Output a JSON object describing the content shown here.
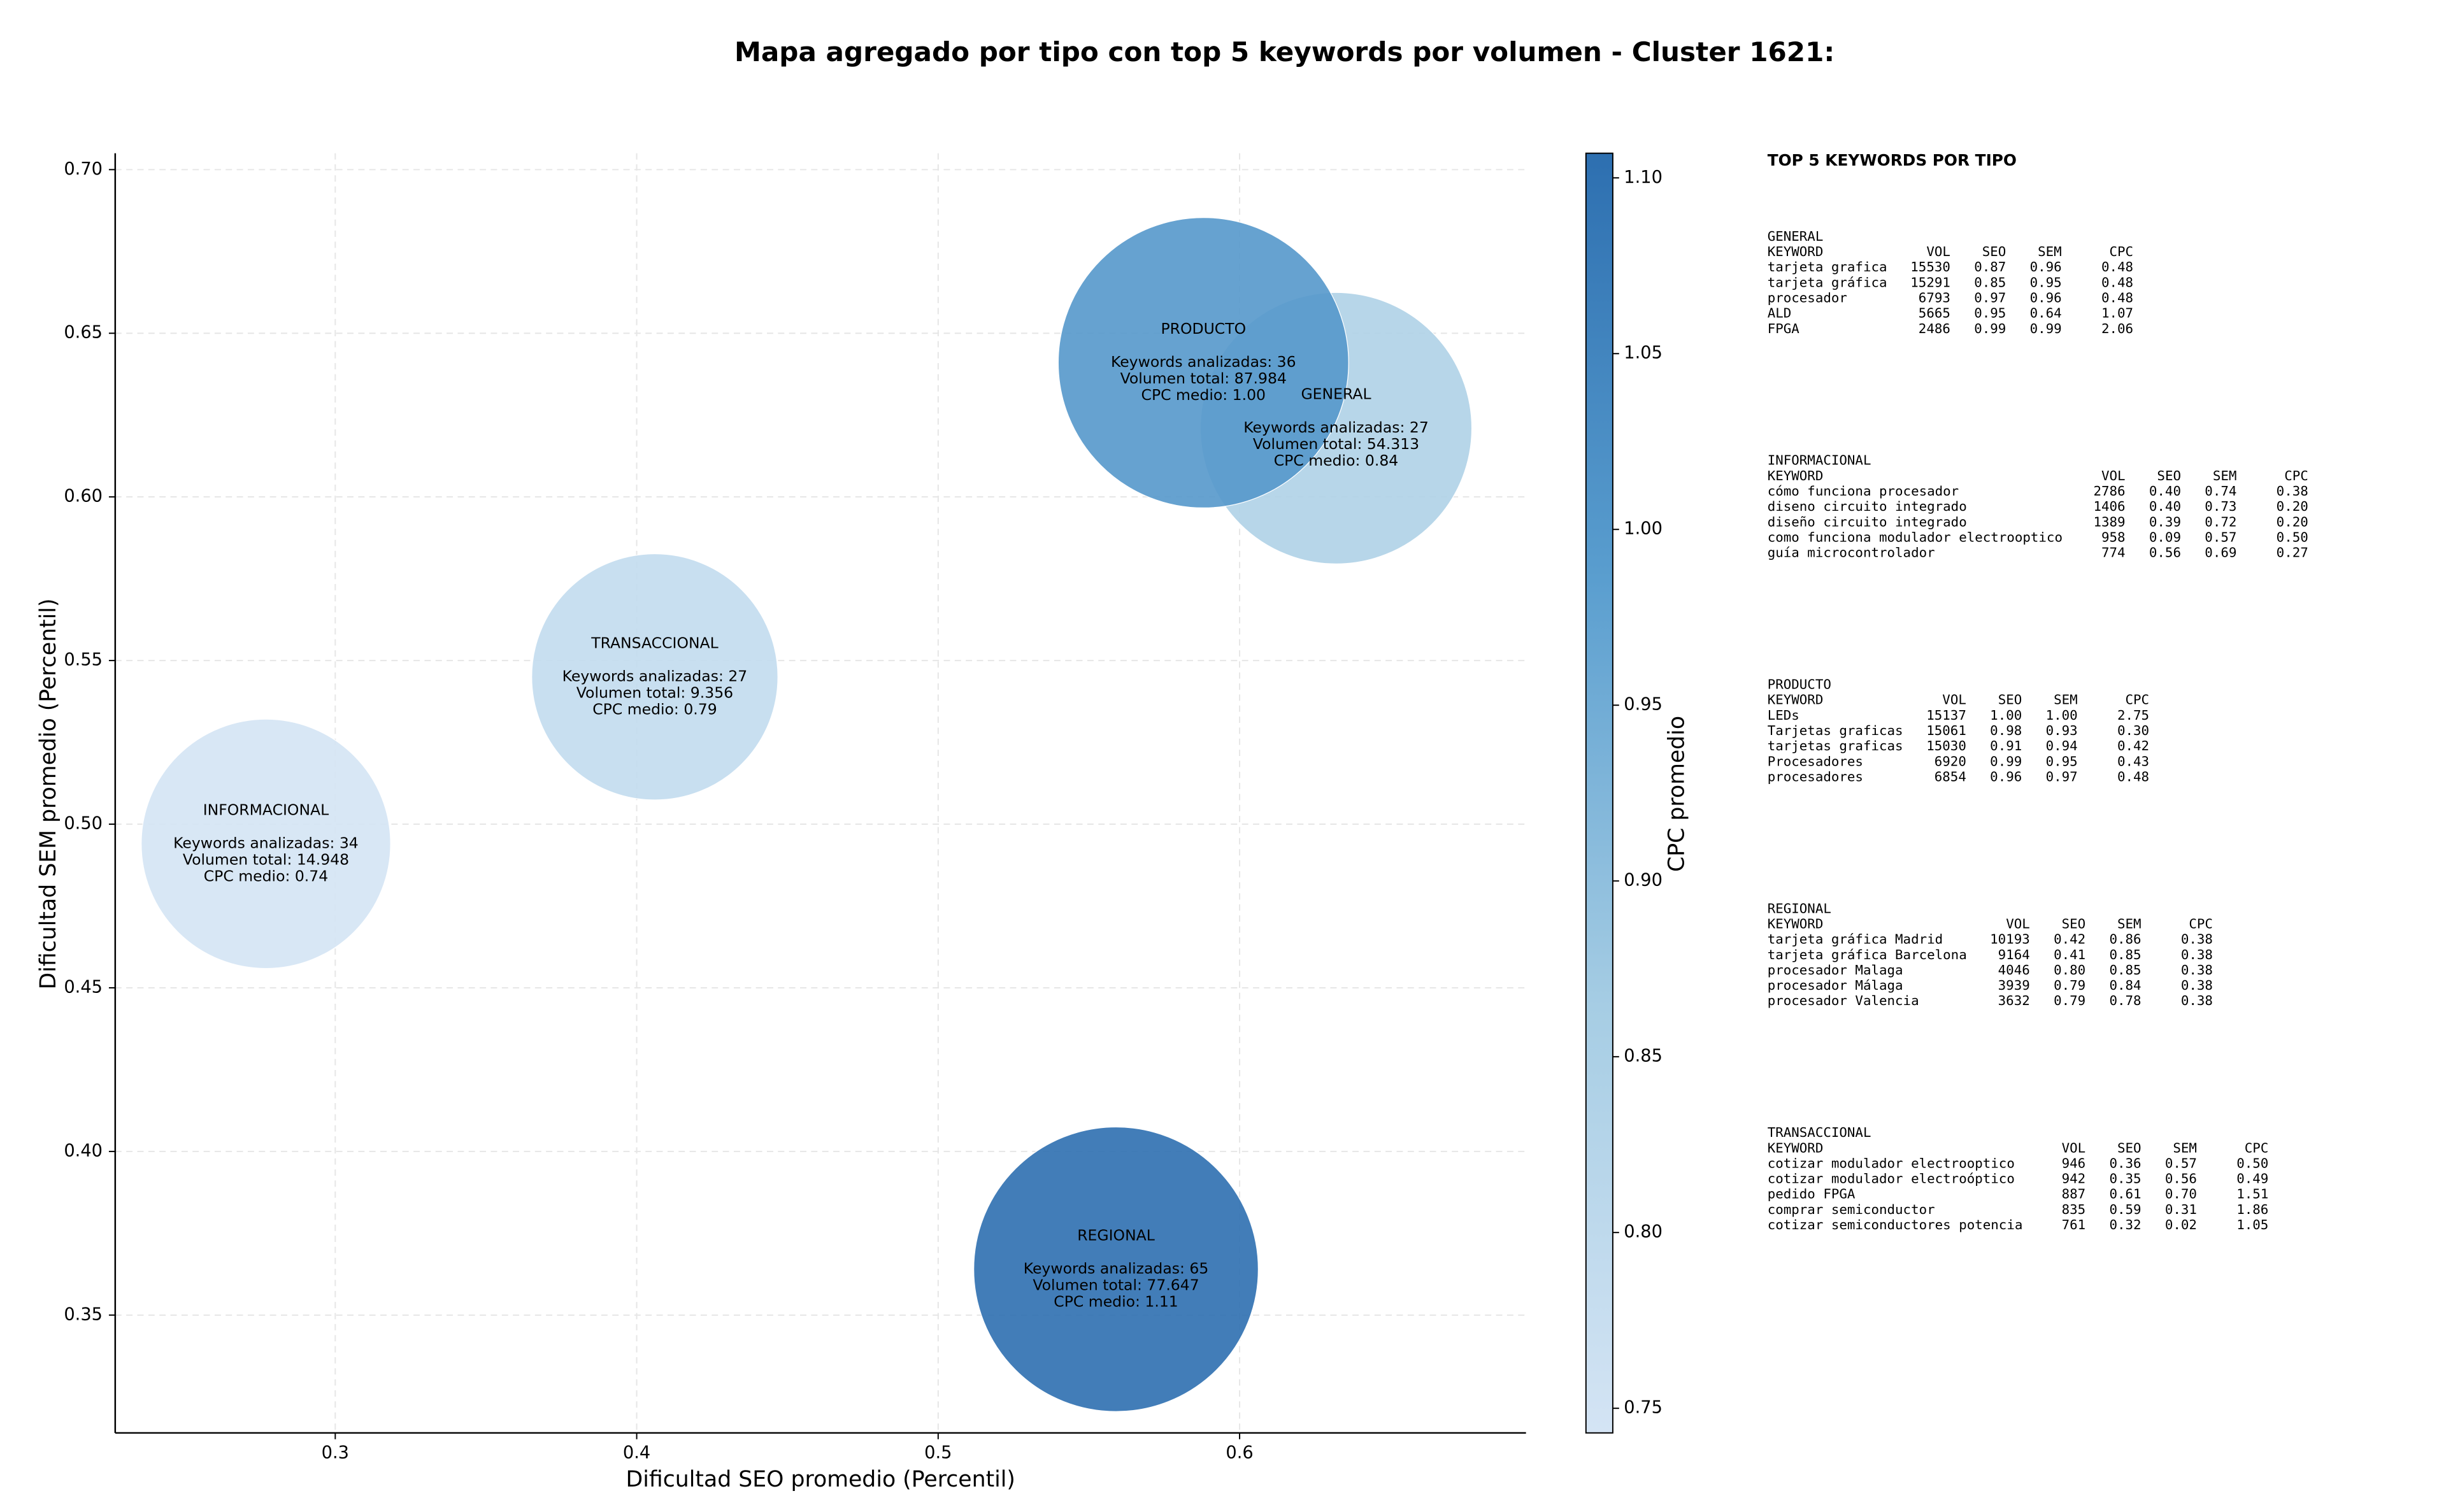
{
  "chart_data": {
    "type": "bubble",
    "title": "Mapa agregado por tipo con top 5 keywords por volumen - Cluster 1621:",
    "x_label": "Dificultad SEO promedio (Percentil)",
    "y_label": "Dificultad SEM promedio (Percentil)",
    "colorbar_label": "CPC promedio",
    "xlim": [
      0.227,
      0.695
    ],
    "xticks": [
      0.3,
      0.4,
      0.5,
      0.6
    ],
    "ylim": [
      0.314,
      0.705
    ],
    "yticks": [
      0.35,
      {
        "value": 0.4,
        "label": "0.40"
      },
      0.45,
      {
        "value": 0.5,
        "label": "0.50"
      },
      0.55,
      {
        "value": 0.6,
        "label": "0.60"
      },
      0.65,
      {
        "value": 0.7,
        "label": "0.70"
      }
    ],
    "clim": [
      0.743,
      1.107
    ],
    "cticks": [
      0.75,
      {
        "value": 0.8,
        "label": "0.80"
      },
      0.85,
      {
        "value": 0.9,
        "label": "0.90"
      },
      0.95,
      {
        "value": 1.0,
        "label": "1.00"
      },
      1.05,
      {
        "value": 1.1,
        "label": "1.10"
      }
    ],
    "cmap": [
      "#d4e4f4",
      "#a6cde4",
      "#5a9ecf",
      "#2d6fb0"
    ],
    "grid": true,
    "points": [
      {
        "x": 0.632,
        "y": 0.621,
        "volume": 54313,
        "cpc": 0.84,
        "lines": [
          "GENERAL",
          "Keywords analizadas: 27",
          "Volumen total: 54.313",
          "CPC medio: 0.84"
        ]
      },
      {
        "x": 0.588,
        "y": 0.641,
        "volume": 87984,
        "cpc": 1.0,
        "lines": [
          "PRODUCTO",
          "Keywords analizadas: 36",
          "Volumen total: 87.984",
          "CPC medio: 1.00"
        ]
      },
      {
        "x": 0.406,
        "y": 0.545,
        "volume": 9356,
        "cpc": 0.79,
        "lines": [
          "TRANSACCIONAL",
          "Keywords analizadas: 27",
          "Volumen total: 9.356",
          "CPC medio: 0.79"
        ]
      },
      {
        "x": 0.277,
        "y": 0.494,
        "volume": 14948,
        "cpc": 0.74,
        "lines": [
          "INFORMACIONAL",
          "Keywords analizadas: 34",
          "Volumen total: 14.948",
          "CPC medio: 0.74"
        ]
      },
      {
        "x": 0.559,
        "y": 0.364,
        "volume": 77647,
        "cpc": 1.11,
        "lines": [
          "REGIONAL",
          "Keywords analizadas: 65",
          "Volumen total: 77.647",
          "CPC medio: 1.11"
        ]
      }
    ]
  },
  "keyword_panel": {
    "title": "TOP 5 KEYWORDS POR TIPO",
    "sections": [
      {
        "name": "GENERAL",
        "columns": [
          "KEYWORD",
          "VOL",
          "SEO",
          "SEM",
          "CPC"
        ],
        "rows": [
          [
            "tarjeta grafica",
            "15530",
            "0.87",
            "0.96",
            "0.48"
          ],
          [
            "tarjeta gráfica",
            "15291",
            "0.85",
            "0.95",
            "0.48"
          ],
          [
            "procesador",
            "6793",
            "0.97",
            "0.96",
            "0.48"
          ],
          [
            "ALD",
            "5665",
            "0.95",
            "0.64",
            "1.07"
          ],
          [
            "FPGA",
            "2486",
            "0.99",
            "0.99",
            "2.06"
          ]
        ]
      },
      {
        "name": "INFORMACIONAL",
        "columns": [
          "KEYWORD",
          "VOL",
          "SEO",
          "SEM",
          "CPC"
        ],
        "rows": [
          [
            "cómo funciona procesador",
            "2786",
            "0.40",
            "0.74",
            "0.38"
          ],
          [
            "diseno circuito integrado",
            "1406",
            "0.40",
            "0.73",
            "0.20"
          ],
          [
            "diseño circuito integrado",
            "1389",
            "0.39",
            "0.72",
            "0.20"
          ],
          [
            "como funciona modulador electrooptico",
            "958",
            "0.09",
            "0.57",
            "0.50"
          ],
          [
            "guía microcontrolador",
            "774",
            "0.56",
            "0.69",
            "0.27"
          ]
        ]
      },
      {
        "name": "PRODUCTO",
        "columns": [
          "KEYWORD",
          "VOL",
          "SEO",
          "SEM",
          "CPC"
        ],
        "rows": [
          [
            "LEDs",
            "15137",
            "1.00",
            "1.00",
            "2.75"
          ],
          [
            "Tarjetas graficas",
            "15061",
            "0.98",
            "0.93",
            "0.30"
          ],
          [
            "tarjetas graficas",
            "15030",
            "0.91",
            "0.94",
            "0.42"
          ],
          [
            "Procesadores",
            "6920",
            "0.99",
            "0.95",
            "0.43"
          ],
          [
            "procesadores",
            "6854",
            "0.96",
            "0.97",
            "0.48"
          ]
        ]
      },
      {
        "name": "REGIONAL",
        "columns": [
          "KEYWORD",
          "VOL",
          "SEO",
          "SEM",
          "CPC"
        ],
        "rows": [
          [
            "tarjeta gráfica Madrid",
            "10193",
            "0.42",
            "0.86",
            "0.38"
          ],
          [
            "tarjeta gráfica Barcelona",
            "9164",
            "0.41",
            "0.85",
            "0.38"
          ],
          [
            "procesador Malaga",
            "4046",
            "0.80",
            "0.85",
            "0.38"
          ],
          [
            "procesador Málaga",
            "3939",
            "0.79",
            "0.84",
            "0.38"
          ],
          [
            "procesador Valencia",
            "3632",
            "0.79",
            "0.78",
            "0.38"
          ]
        ]
      },
      {
        "name": "TRANSACCIONAL",
        "columns": [
          "KEYWORD",
          "VOL",
          "SEO",
          "SEM",
          "CPC"
        ],
        "rows": [
          [
            "cotizar modulador electrooptico",
            "946",
            "0.36",
            "0.57",
            "0.50"
          ],
          [
            "cotizar modulador electroóptico",
            "942",
            "0.35",
            "0.56",
            "0.49"
          ],
          [
            "pedido FPGA",
            "887",
            "0.61",
            "0.70",
            "1.51"
          ],
          [
            "comprar semiconductor",
            "835",
            "0.59",
            "0.31",
            "1.86"
          ],
          [
            "cotizar semiconductores potencia",
            "761",
            "0.32",
            "0.02",
            "1.05"
          ]
        ]
      }
    ]
  }
}
